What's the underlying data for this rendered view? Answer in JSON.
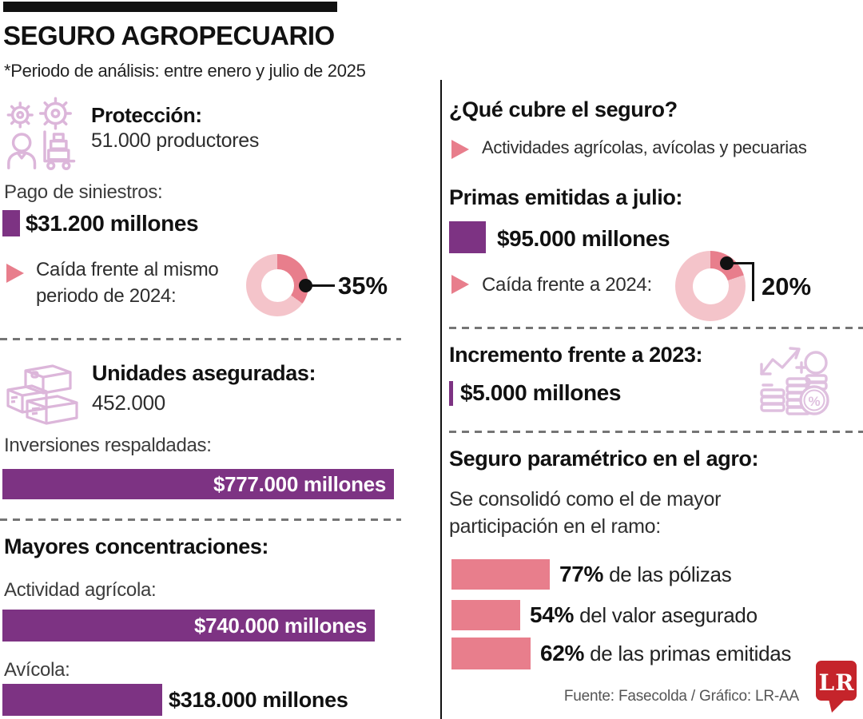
{
  "colors": {
    "purple": "#7d3383",
    "pink": "#e87e8c",
    "donut_dark": "#e87e8c",
    "donut_light": "#f4c4ca",
    "icon_stroke": "#dcb6da",
    "logo_red": "#c5242b"
  },
  "header": {
    "title": "SEGURO AGROPECUARIO",
    "subtitle": "*Periodo de análisis: entre enero y julio de 2025"
  },
  "left": {
    "proteccion": {
      "title": "Protección:",
      "value": "51.000 productores"
    },
    "siniestros": {
      "label": "Pago de siniestros:",
      "value": "$31.200 millones"
    },
    "caida_2024": {
      "line1": "Caída frente al mismo",
      "line2": "periodo de 2024:",
      "pct_label": "35%"
    },
    "unidades": {
      "title": "Unidades aseguradas:",
      "value": "452.000"
    },
    "inversiones": {
      "label": "Inversiones respaldadas:",
      "value": "$777.000 millones"
    },
    "concentraciones": {
      "title": "Mayores concentraciones:",
      "agricola": {
        "label": "Actividad agrícola:",
        "value": "$740.000 millones"
      },
      "avicola": {
        "label": "Avícola:",
        "value": "$318.000 millones"
      }
    }
  },
  "right": {
    "cobertura": {
      "title": "¿Qué cubre el seguro?",
      "item": "Actividades agrícolas, avícolas y pecuarias"
    },
    "primas": {
      "title": "Primas emitidas a julio:",
      "value": "$95.000 millones"
    },
    "caida_2024": {
      "label": "Caída frente a 2024:",
      "pct_label": "20%"
    },
    "incremento": {
      "title": "Incremento frente a 2023:",
      "value": "$5.000 millones"
    },
    "parametrico": {
      "title": "Seguro paramétrico en el agro:",
      "desc1": "Se consolidó como el de mayor",
      "desc2": "participación en el ramo:",
      "bars": [
        {
          "pct": "77%",
          "label": " de las pólizas"
        },
        {
          "pct": "54%",
          "label": " del valor asegurado"
        },
        {
          "pct": "62%",
          "label": " de las primas emitidas"
        }
      ]
    }
  },
  "footer": {
    "source": "Fuente: Fasecolda / Gráfico: LR-AA",
    "logo_text": "LR"
  },
  "chart_data": [
    {
      "type": "pie",
      "subtype": "donut",
      "title": "Caída del pago de siniestros frente al mismo periodo de 2024",
      "labels": [
        "Caída",
        "Resto"
      ],
      "values": [
        35,
        65
      ],
      "annotation": "35%"
    },
    {
      "type": "pie",
      "subtype": "donut",
      "title": "Caída de primas emitidas frente a 2024",
      "labels": [
        "Caída",
        "Resto"
      ],
      "values": [
        20,
        80
      ],
      "annotation": "20%"
    },
    {
      "type": "bar",
      "title": "Inversiones respaldadas",
      "categories": [
        "Inversiones respaldadas"
      ],
      "values": [
        777000
      ],
      "unit": "$ millones",
      "value_labels": [
        "$777.000 millones"
      ]
    },
    {
      "type": "bar",
      "title": "Mayores concentraciones",
      "categories": [
        "Actividad agrícola",
        "Avícola"
      ],
      "values": [
        740000,
        318000
      ],
      "unit": "$ millones",
      "value_labels": [
        "$740.000 millones",
        "$318.000 millones"
      ]
    },
    {
      "type": "bar",
      "title": "Seguro paramétrico en el agro — participación en el ramo",
      "categories": [
        "de las pólizas",
        "del valor asegurado",
        "de las primas emitidas"
      ],
      "values": [
        77,
        54,
        62
      ],
      "unit": "%"
    }
  ]
}
